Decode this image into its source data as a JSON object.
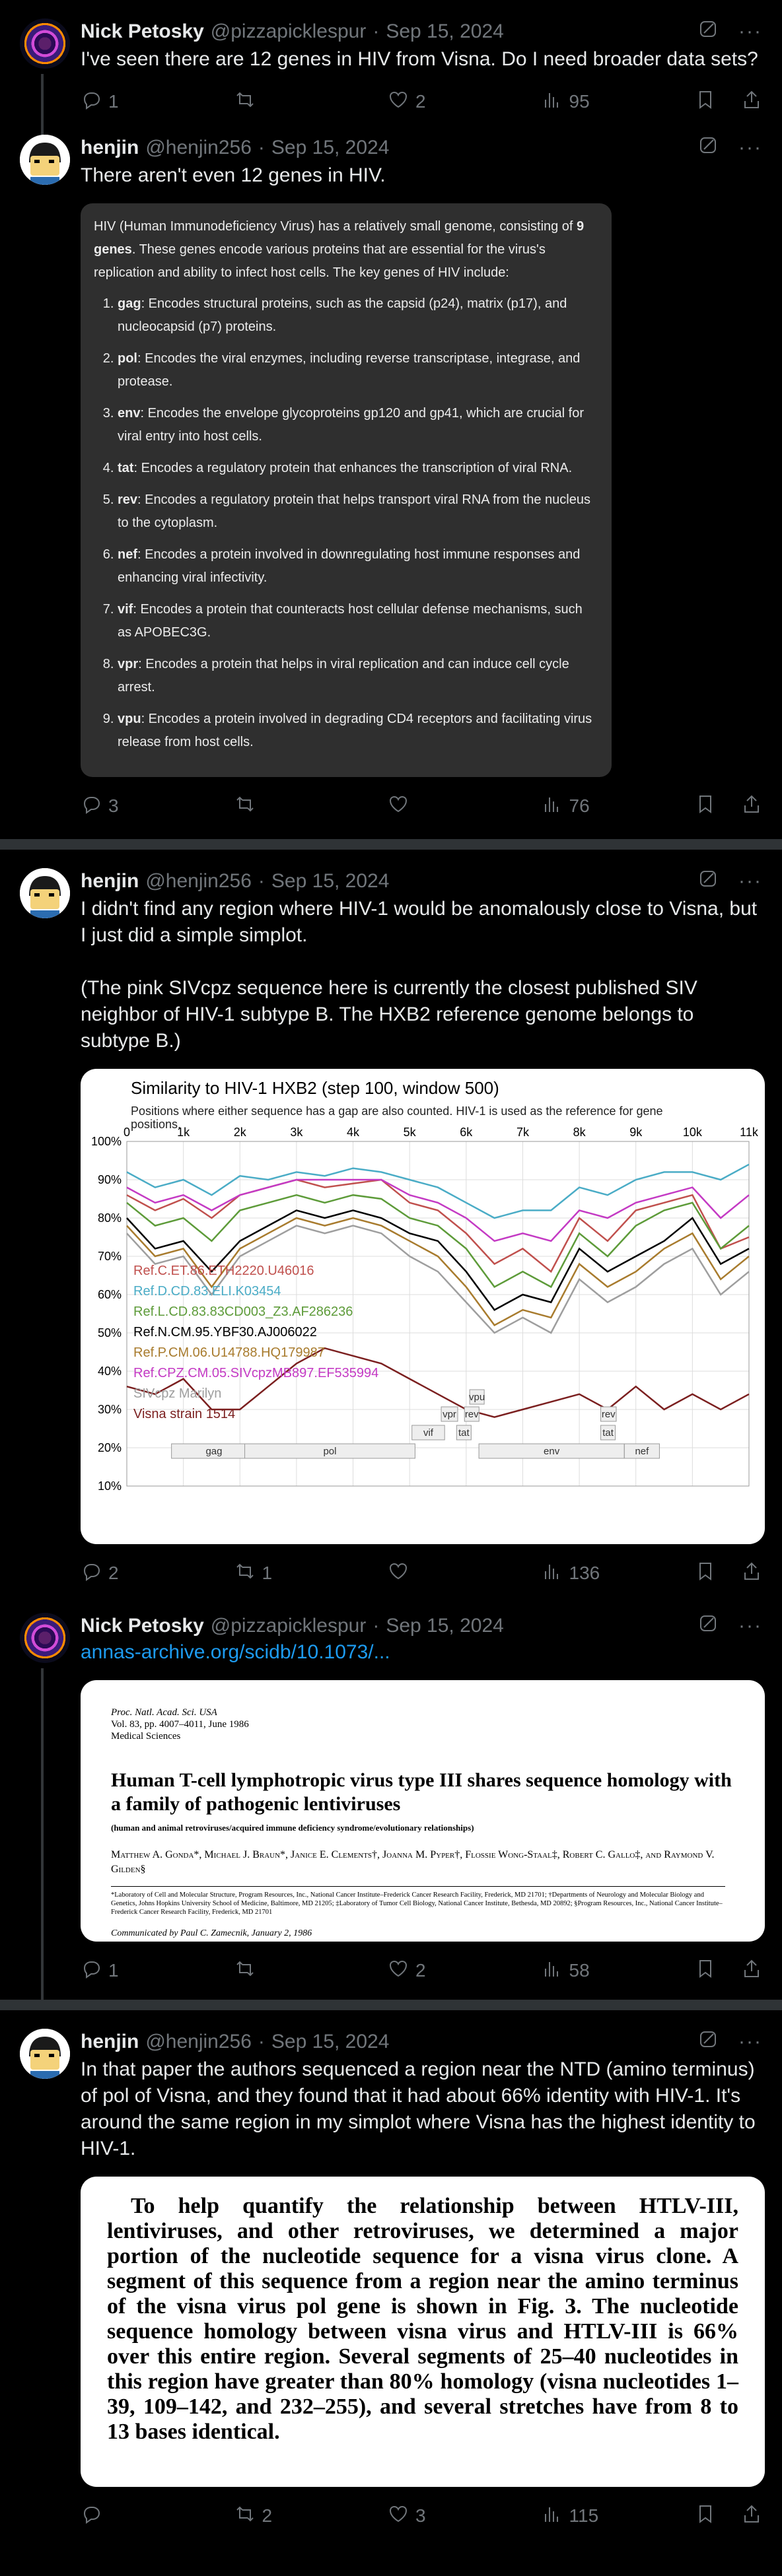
{
  "posts": [
    {
      "author": "Nick Petosky",
      "handle": "@pizzapicklespur",
      "date": "Sep 15, 2024",
      "text": "I've seen there are 12 genes in HIV from Visna. Do I need broader data sets?",
      "replies": "1",
      "reposts": "",
      "likes": "2",
      "views": "95"
    },
    {
      "author": "henjin",
      "handle": "@henjin256",
      "date": "Sep 15, 2024",
      "text": "There aren't even 12 genes in HIV.",
      "replies": "3",
      "reposts": "",
      "likes": "",
      "views": "76",
      "chat": {
        "intro_pre": "HIV (Human Immunodeficiency Virus) has a relatively small genome, consisting of ",
        "intro_bold": "9 genes",
        "intro_post": ". These genes encode various proteins that are essential for the virus's replication and ability to infect host cells. The key genes of HIV include:",
        "genes": [
          {
            "name": "gag",
            "desc": ": Encodes structural proteins, such as the capsid (p24), matrix (p17), and nucleocapsid (p7) proteins."
          },
          {
            "name": "pol",
            "desc": ": Encodes the viral enzymes, including reverse transcriptase, integrase, and protease."
          },
          {
            "name": "env",
            "desc": ": Encodes the envelope glycoproteins gp120 and gp41, which are crucial for viral entry into host cells."
          },
          {
            "name": "tat",
            "desc": ": Encodes a regulatory protein that enhances the transcription of viral RNA."
          },
          {
            "name": "rev",
            "desc": ": Encodes a regulatory protein that helps transport viral RNA from the nucleus to the cytoplasm."
          },
          {
            "name": "nef",
            "desc": ": Encodes a protein involved in downregulating host immune responses and enhancing viral infectivity."
          },
          {
            "name": "vif",
            "desc": ": Encodes a protein that counteracts host cellular defense mechanisms, such as APOBEC3G."
          },
          {
            "name": "vpr",
            "desc": ": Encodes a protein that helps in viral replication and can induce cell cycle arrest."
          },
          {
            "name": "vpu",
            "desc": ": Encodes a protein involved in degrading CD4 receptors and facilitating virus release from host cells."
          }
        ]
      }
    },
    {
      "author": "henjin",
      "handle": "@henjin256",
      "date": "Sep 15, 2024",
      "text1": "I didn't find any region where HIV-1 would be anomalously close to Visna, but I just did a simple simplot.",
      "text2": "(The pink SIVcpz sequence here is currently the closest published SIV neighbor of HIV-1 subtype B. The HXB2 reference genome belongs to subtype B.)",
      "replies": "2",
      "reposts": "1",
      "likes": "",
      "views": "136"
    },
    {
      "author": "Nick Petosky",
      "handle": "@pizzapicklespur",
      "date": "Sep 15, 2024",
      "link": "annas-archive.org/scidb/10.1073/...",
      "replies": "1",
      "reposts": "",
      "likes": "2",
      "views": "58",
      "paper": {
        "journal": "Proc. Natl. Acad. Sci. USA",
        "volume": "Vol. 83, pp. 4007–4011, June 1986",
        "section": "Medical Sciences",
        "title": "Human T-cell lymphotropic virus type III shares sequence homology with a family of pathogenic lentiviruses",
        "subtitle": "(human and animal retroviruses/acquired immune deficiency syndrome/evolutionary relationships)",
        "authors": "Matthew A. Gonda*, Michael J. Braun*, Janice E. Clements†, Joanna M. Pyper†, Flossie Wong-Staal‡, Robert C. Gallo‡, and Raymond V. Gilden§",
        "affiliations": "*Laboratory of Cell and Molecular Structure, Program Resources, Inc., National Cancer Institute–Frederick Cancer Research Facility, Frederick, MD 21701; †Departments of Neurology and Molecular Biology and Genetics, Johns Hopkins University School of Medicine, Baltimore, MD 21205; ‡Laboratory of Tumor Cell Biology, National Cancer Institute, Bethesda, MD 20892; §Program Resources, Inc., National Cancer Institute–Frederick Cancer Research Facility, Frederick, MD 21701",
        "communicated": "Communicated by Paul C. Zamecnik, January 2, 1986"
      }
    },
    {
      "author": "henjin",
      "handle": "@henjin256",
      "date": "Sep 15, 2024",
      "text": "In that paper the authors sequenced a region near the NTD (amino terminus) of pol of Visna, and they found that it had about 66% identity with HIV-1. It's around the same region in my simplot where Visna has the highest identity to HIV-1.",
      "replies": "",
      "reposts": "2",
      "likes": "3",
      "views": "115",
      "quote": "To help quantify the relationship between HTLV-III, lentiviruses, and other retroviruses, we determined a major portion of the nucleotide sequence for a visna virus clone. A segment of this sequence from a region near the amino terminus of the visna virus pol gene is shown in Fig. 3. The nucleotide sequence homology between visna virus and HTLV-III is 66% over this entire region. Several segments of 25–40 nucleotides in this region have greater than 80% homology (visna nucleotides 1–39, 109–142, and 232–255), and several stretches have from 8 to 13 bases identical."
    }
  ],
  "chart_data": {
    "type": "line",
    "title": "Similarity to HIV-1 HXB2 (step 100, window 500)",
    "subtitle": "Positions where either sequence has a gap are also counted. HIV-1 is used as the reference for gene positions.",
    "xlabel": "",
    "ylabel": "",
    "xlim": [
      0,
      11000
    ],
    "ylim": [
      10,
      100
    ],
    "x_tick_labels": [
      "0",
      "1k",
      "2k",
      "3k",
      "4k",
      "5k",
      "6k",
      "7k",
      "8k",
      "9k",
      "10k",
      "11k"
    ],
    "y_tick_labels": [
      "100%",
      "90%",
      "80%",
      "70%",
      "60%",
      "50%",
      "40%",
      "30%",
      "20%",
      "10%"
    ],
    "grid": true,
    "legend_position": "bottom-left",
    "x": [
      0,
      500,
      1000,
      1500,
      2000,
      2500,
      3000,
      3500,
      4000,
      4500,
      5000,
      5500,
      6000,
      6500,
      7000,
      7500,
      8000,
      8500,
      9000,
      9500,
      10000,
      10500,
      11000
    ],
    "series": [
      {
        "name": "Ref.C.ET.86.ETH2220.U46016",
        "color": "#c0504d",
        "values": [
          86,
          82,
          85,
          80,
          86,
          88,
          90,
          88,
          89,
          90,
          84,
          82,
          76,
          68,
          72,
          66,
          80,
          74,
          82,
          84,
          86,
          72,
          75
        ]
      },
      {
        "name": "Ref.D.CD.83.ELI.K03454",
        "color": "#4aacc6",
        "values": [
          92,
          88,
          90,
          86,
          91,
          90,
          92,
          91,
          93,
          92,
          90,
          88,
          84,
          80,
          82,
          82,
          88,
          86,
          90,
          92,
          92,
          90,
          94
        ]
      },
      {
        "name": "Ref.L.CD.83.83CD003_Z3.AF286236",
        "color": "#5d9b39",
        "values": [
          84,
          78,
          80,
          74,
          82,
          84,
          86,
          84,
          86,
          85,
          80,
          78,
          72,
          62,
          66,
          62,
          76,
          70,
          78,
          82,
          84,
          72,
          78
        ]
      },
      {
        "name": "Ref.N.CM.95.YBF30.AJ006022",
        "color": "#000000",
        "values": [
          80,
          72,
          74,
          66,
          74,
          78,
          82,
          80,
          82,
          80,
          76,
          74,
          66,
          56,
          60,
          58,
          72,
          66,
          70,
          74,
          80,
          68,
          72
        ]
      },
      {
        "name": "Ref.P.CM.06.U14788.HQ179987",
        "color": "#a87b2d",
        "values": [
          78,
          70,
          72,
          62,
          72,
          76,
          80,
          78,
          80,
          78,
          74,
          70,
          62,
          52,
          56,
          54,
          68,
          62,
          66,
          72,
          76,
          64,
          70
        ]
      },
      {
        "name": "Ref.CPZ.CM.05.SIVcpzMB897.EF535994",
        "color": "#c43ac4",
        "values": [
          88,
          84,
          86,
          82,
          86,
          88,
          90,
          90,
          90,
          90,
          86,
          84,
          80,
          74,
          76,
          74,
          82,
          80,
          84,
          86,
          88,
          80,
          86
        ]
      },
      {
        "name": "SIVcpz Marilyn",
        "color": "#9e9e9e",
        "values": [
          76,
          68,
          70,
          60,
          70,
          74,
          78,
          76,
          78,
          76,
          70,
          66,
          58,
          50,
          54,
          50,
          64,
          58,
          62,
          68,
          72,
          60,
          66
        ]
      },
      {
        "name": "Visna strain 1514",
        "color": "#7b1f1f",
        "values": [
          36,
          34,
          38,
          30,
          30,
          36,
          42,
          46,
          44,
          42,
          38,
          34,
          30,
          28,
          30,
          32,
          34,
          30,
          36,
          30,
          34,
          30,
          34
        ]
      }
    ],
    "genes": [
      {
        "name": "gag",
        "start": 790,
        "end": 2292,
        "row": 0
      },
      {
        "name": "pol",
        "start": 2085,
        "end": 5096,
        "row": 0
      },
      {
        "name": "vif",
        "start": 5041,
        "end": 5619,
        "row": 1
      },
      {
        "name": "vpr",
        "start": 5559,
        "end": 5850,
        "row": 2
      },
      {
        "name": "tat",
        "start": 5831,
        "end": 6045,
        "row": 1
      },
      {
        "name": "rev",
        "start": 5970,
        "end": 6045,
        "row": 2
      },
      {
        "name": "vpu",
        "start": 6062,
        "end": 6310,
        "row": 3
      },
      {
        "name": "env",
        "start": 6225,
        "end": 8795,
        "row": 0
      },
      {
        "name": "tat",
        "start": 8379,
        "end": 8469,
        "row": 1
      },
      {
        "name": "rev",
        "start": 8379,
        "end": 8653,
        "row": 2
      },
      {
        "name": "nef",
        "start": 8797,
        "end": 9417,
        "row": 0
      }
    ]
  }
}
